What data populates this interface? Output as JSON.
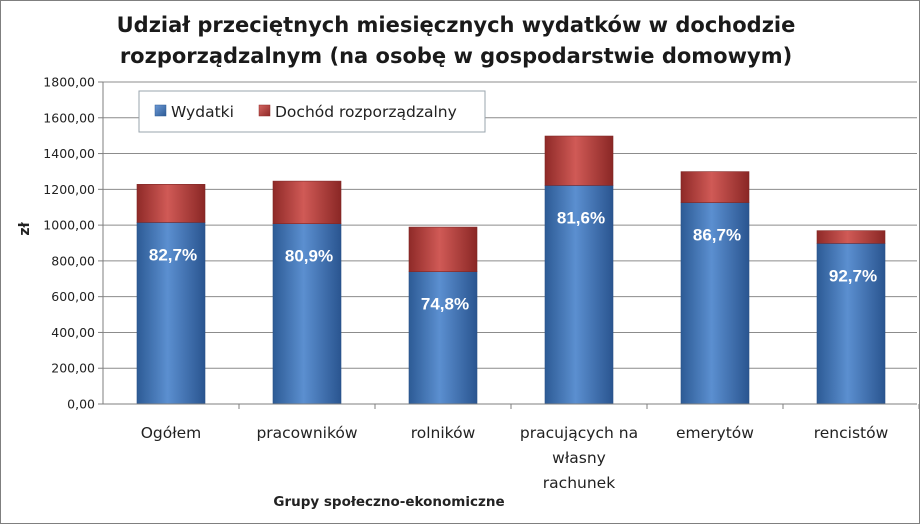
{
  "chart_data": {
    "type": "bar",
    "stacked": true,
    "title_lines": [
      "Udział przeciętnych miesięcznych wydatków w dochodzie",
      "rozporządzalnym (na osobę w gospodarstwie domowym)"
    ],
    "xlabel": "Grupy społeczno-ekonomiczne",
    "ylabel": "zł",
    "ylim": [
      0,
      1800
    ],
    "yticks": [
      0,
      200,
      400,
      600,
      800,
      1000,
      1200,
      1400,
      1600,
      1800
    ],
    "ytick_labels": [
      "0,00",
      "200,00",
      "400,00",
      "600,00",
      "800,00",
      "1000,00",
      "1200,00",
      "1400,00",
      "1600,00",
      "1800,00"
    ],
    "categories": [
      [
        "Ogółem"
      ],
      [
        "pracowników"
      ],
      [
        "rolników"
      ],
      [
        "pracujących na",
        "własny",
        "rachunek"
      ],
      [
        "emerytów"
      ],
      [
        "rencistów"
      ]
    ],
    "series": [
      {
        "name": "Wydatki",
        "color": "#4a7ebb",
        "values": [
          1015,
          1008,
          740,
          1222,
          1126,
          898
        ]
      },
      {
        "name": "Dochód rozporządzalny",
        "color": "#be4b48",
        "values": [
          213,
          238,
          249,
          276,
          173,
          71
        ]
      }
    ],
    "data_labels": [
      "82,7%",
      "80,9%",
      "74,8%",
      "81,6%",
      "86,7%",
      "92,7%"
    ],
    "legend_position": "top-left"
  }
}
